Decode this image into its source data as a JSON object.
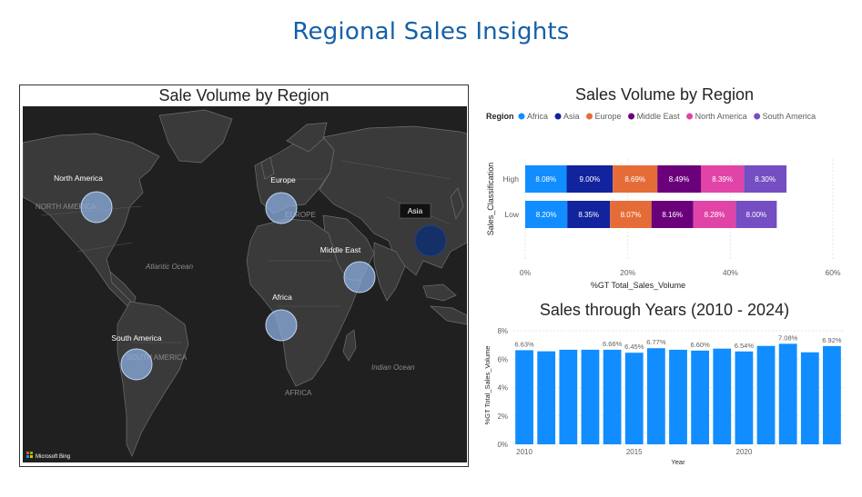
{
  "page": {
    "title": "Regional Sales Insights"
  },
  "map": {
    "title": "Sale Volume by Region",
    "bing_label": "Microsoft Bing",
    "base_labels": {
      "north_america": "NORTH AMERICA",
      "south_america": "SOUTH AMERICA",
      "europe": "EUROPE",
      "africa": "AFRICA",
      "atlantic": "Atlantic Ocean",
      "indian": "Indian Ocean"
    },
    "bubbles": [
      {
        "region": "North America",
        "color": "#8fb3e6"
      },
      {
        "region": "Europe",
        "color": "#8fb3e6"
      },
      {
        "region": "Asia",
        "color": "#12306b"
      },
      {
        "region": "Middle East",
        "color": "#8fb3e6"
      },
      {
        "region": "Africa",
        "color": "#8fb3e6"
      },
      {
        "region": "South America",
        "color": "#8fb3e6"
      }
    ]
  },
  "chart_data": [
    {
      "type": "bar",
      "orientation": "horizontal-stacked",
      "title": "Sales Volume by Region",
      "legend_title": "Region",
      "legend_position": "top-left",
      "categories": [
        "High",
        "Low"
      ],
      "xlabel": "%GT Total_Sales_Volume",
      "ylabel": "Sales_Classification",
      "xlim": [
        0,
        60
      ],
      "x_ticks": [
        "0%",
        "20%",
        "40%",
        "60%"
      ],
      "series": [
        {
          "name": "Africa",
          "color": "#118dff",
          "values": [
            8.08,
            8.2
          ],
          "labels": [
            "8.08%",
            "8.20%"
          ]
        },
        {
          "name": "Asia",
          "color": "#12239e",
          "values": [
            9.0,
            8.35
          ],
          "labels": [
            "9.00%",
            "8.35%"
          ]
        },
        {
          "name": "Europe",
          "color": "#e66c37",
          "values": [
            8.69,
            8.07
          ],
          "labels": [
            "8.69%",
            "8.07%"
          ]
        },
        {
          "name": "Middle East",
          "color": "#6b007b",
          "values": [
            8.49,
            8.16
          ],
          "labels": [
            "8.49%",
            "8.16%"
          ]
        },
        {
          "name": "North America",
          "color": "#e044a7",
          "values": [
            8.39,
            8.28
          ],
          "labels": [
            "8.39%",
            "8.28%"
          ]
        },
        {
          "name": "South America",
          "color": "#744ec2",
          "values": [
            8.3,
            8.0
          ],
          "labels": [
            "8.30%",
            "8.00%"
          ]
        }
      ]
    },
    {
      "type": "bar",
      "title": "Sales through Years (2010 - 2024)",
      "xlabel": "Year",
      "ylabel": "%GT Total_Sales_Volume",
      "ylim": [
        0,
        8
      ],
      "y_ticks": [
        "0%",
        "2%",
        "4%",
        "6%",
        "8%"
      ],
      "x_ticks": [
        "2010",
        "2015",
        "2020"
      ],
      "color": "#118dff",
      "x": [
        2010,
        2011,
        2012,
        2013,
        2014,
        2015,
        2016,
        2017,
        2018,
        2019,
        2020,
        2021,
        2022,
        2023,
        2024
      ],
      "values": [
        6.63,
        6.55,
        6.66,
        6.66,
        6.66,
        6.45,
        6.77,
        6.66,
        6.6,
        6.74,
        6.54,
        6.93,
        7.08,
        6.48,
        6.92
      ],
      "data_labels": [
        "6.63%",
        "",
        "",
        "",
        "6.66%",
        "6.45%",
        "6.77%",
        "",
        "6.60%",
        "",
        "6.54%",
        "",
        "7.08%",
        "",
        "6.92%"
      ]
    }
  ]
}
